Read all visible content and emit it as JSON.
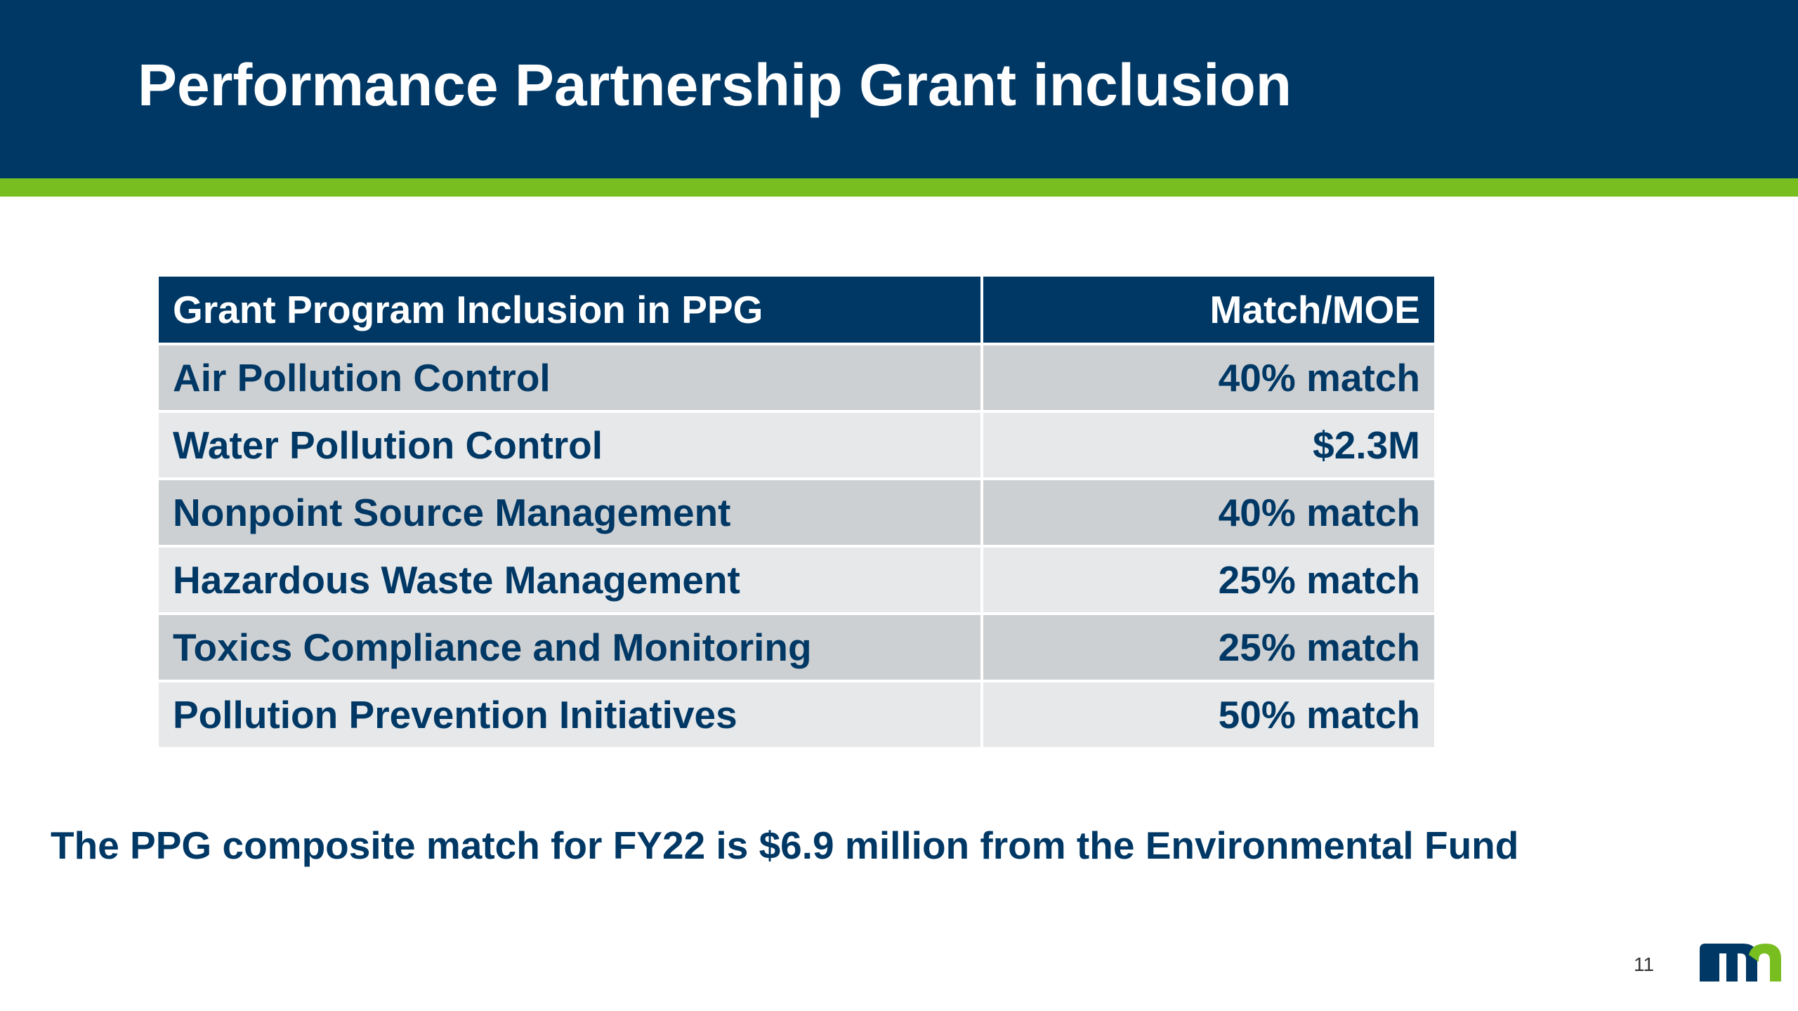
{
  "slide": {
    "title": "Performance Partnership Grant inclusion",
    "colors": {
      "header": "#003865",
      "accent": "#78be21",
      "row_dark": "#cdd0d3",
      "row_light": "#e6e8ea",
      "text": "#003865"
    }
  },
  "table": {
    "headers": [
      "Grant Program Inclusion in PPG",
      "Match/MOE"
    ],
    "rows": [
      {
        "program": "Air Pollution Control",
        "match": "40% match"
      },
      {
        "program": "Water Pollution Control",
        "match": "$2.3M"
      },
      {
        "program": "Nonpoint Source Management",
        "match": "40% match"
      },
      {
        "program": "Hazardous Waste Management",
        "match": "25% match"
      },
      {
        "program": "Toxics Compliance and Monitoring",
        "match": "25% match"
      },
      {
        "program": "Pollution Prevention Initiatives",
        "match": "50% match"
      }
    ]
  },
  "footnote": "The PPG composite match for FY22 is $6.9 million from the Environmental Fund",
  "footer": {
    "page_number": "11",
    "logo_icon": "mn-logo-icon"
  }
}
